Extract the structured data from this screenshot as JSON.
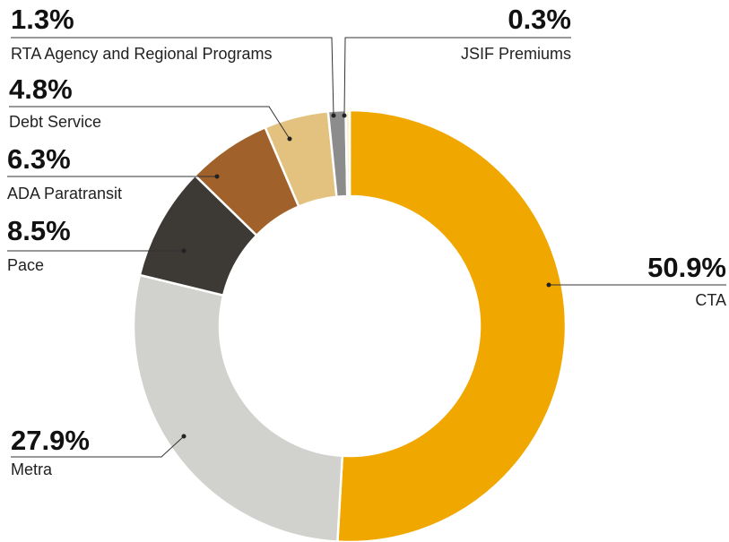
{
  "chart_data": {
    "type": "pie",
    "donut": true,
    "categories": [
      "CTA",
      "Metra",
      "Pace",
      "ADA Paratransit",
      "Debt Service",
      "RTA Agency and Regional Programs",
      "JSIF Premiums"
    ],
    "values": [
      50.9,
      27.9,
      8.5,
      6.3,
      4.8,
      1.3,
      0.3
    ],
    "value_labels": [
      "50.9%",
      "27.9%",
      "8.5%",
      "6.3%",
      "4.8%",
      "1.3%",
      "0.3%"
    ],
    "colors": [
      "#f0a800",
      "#d1d1cd",
      "#3d3935",
      "#a0622a",
      "#e3c17f",
      "#8c8c8c",
      "#fbf0c4"
    ]
  }
}
